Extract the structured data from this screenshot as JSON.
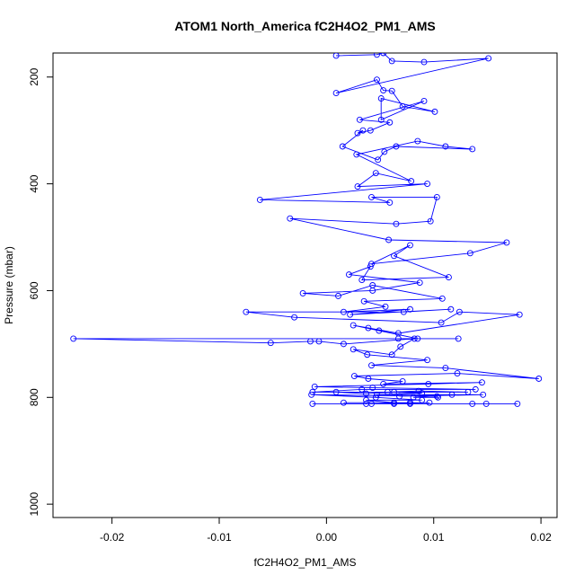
{
  "chart_data": {
    "type": "scatter",
    "connected": true,
    "title": "ATOM1 North_America fC2H4O2_PM1_AMS",
    "xlabel": "fC2H4O2_PM1_AMS",
    "ylabel": "Pressure (mbar)",
    "xlim": [
      -0.0255,
      0.0215
    ],
    "ylim": [
      1025,
      155
    ],
    "y_reversed": true,
    "x_ticks": [
      -0.02,
      -0.01,
      0.0,
      0.01,
      0.02
    ],
    "x_tick_labels": [
      "-0.02",
      "-0.01",
      "0.00",
      "0.01",
      "0.02"
    ],
    "y_ticks": [
      200,
      400,
      600,
      800,
      1000
    ],
    "y_tick_labels": [
      "200",
      "400",
      "600",
      "800",
      "1000"
    ],
    "grid": false,
    "legend": "none",
    "colors": {
      "series": "#0000ff",
      "axes": "#000000"
    },
    "x": [
      0.0009,
      0.0047,
      0.0053,
      0.0061,
      0.0091,
      0.0151,
      0.0009,
      0.0047,
      0.0053,
      0.0061,
      0.0071,
      0.0101,
      0.0051,
      0.0051,
      0.0091,
      0.0031,
      0.0059,
      0.0041,
      0.0029,
      0.0034,
      0.0015,
      0.0048,
      0.0054,
      0.0065,
      0.0136,
      0.0111,
      0.0085,
      0.0028,
      0.0079,
      0.0046,
      0.0029,
      0.0094,
      -0.0062,
      0.0059,
      0.0042,
      0.0103,
      0.0097,
      0.0065,
      -0.0034,
      0.0058,
      0.0168,
      0.0134,
      0.0042,
      0.0078,
      0.0063,
      0.0114,
      0.0033,
      0.0041,
      0.0021,
      0.0087,
      0.0043,
      -0.0022,
      0.0011,
      0.0043,
      0.0108,
      0.0035,
      0.0055,
      0.0016,
      0.0078,
      0.0022,
      0.0116,
      0.0072,
      -0.0075,
      -0.003,
      0.0107,
      0.0124,
      0.018,
      0.0067,
      0.0039,
      0.0025,
      0.0049,
      0.0085,
      0.0123,
      0.0067,
      -0.0236,
      -0.0052,
      -0.0015,
      -0.0007,
      0.0016,
      0.0082,
      0.0069,
      0.0061,
      0.0025,
      0.0038,
      0.0094,
      0.0042,
      0.0111,
      0.0198,
      0.0122,
      0.0026,
      0.0039,
      0.0071,
      0.0053,
      0.0145,
      0.0095,
      -0.0011,
      0.0043,
      0.0139,
      0.0033,
      -0.0013,
      0.0057,
      0.0086,
      0.0132,
      0.0009,
      0.0037,
      0.0063,
      0.0089,
      0.0047,
      0.0146,
      0.0068,
      0.0117,
      0.0081,
      0.0104,
      0.0103,
      -0.0014,
      0.0046,
      0.0089,
      0.0037,
      0.0063,
      0.0078,
      0.0016,
      0.0096,
      0.0042,
      0.0063,
      -0.0013,
      0.0037,
      0.0078,
      0.0136,
      0.0149,
      0.0178
    ],
    "y": [
      160,
      158,
      155,
      170,
      172,
      165,
      230,
      205,
      225,
      226,
      255,
      265,
      240,
      280,
      245,
      280,
      285,
      300,
      305,
      300,
      330,
      355,
      340,
      330,
      335,
      330,
      320,
      345,
      395,
      380,
      405,
      400,
      430,
      435,
      425,
      425,
      470,
      475,
      465,
      505,
      510,
      530,
      550,
      515,
      535,
      575,
      580,
      555,
      570,
      585,
      600,
      605,
      610,
      590,
      615,
      620,
      630,
      640,
      635,
      645,
      635,
      640,
      640,
      650,
      660,
      640,
      645,
      680,
      670,
      665,
      675,
      690,
      690,
      690,
      690,
      698,
      695,
      695,
      700,
      690,
      705,
      720,
      710,
      720,
      730,
      740,
      745,
      765,
      755,
      760,
      765,
      770,
      775,
      772,
      775,
      780,
      782,
      785,
      785,
      790,
      790,
      788,
      790,
      790,
      793,
      790,
      792,
      795,
      795,
      798,
      795,
      800,
      800,
      798,
      795,
      800,
      805,
      805,
      810,
      810,
      810,
      810,
      812,
      812,
      812,
      812,
      812,
      812,
      812,
      812
    ]
  }
}
